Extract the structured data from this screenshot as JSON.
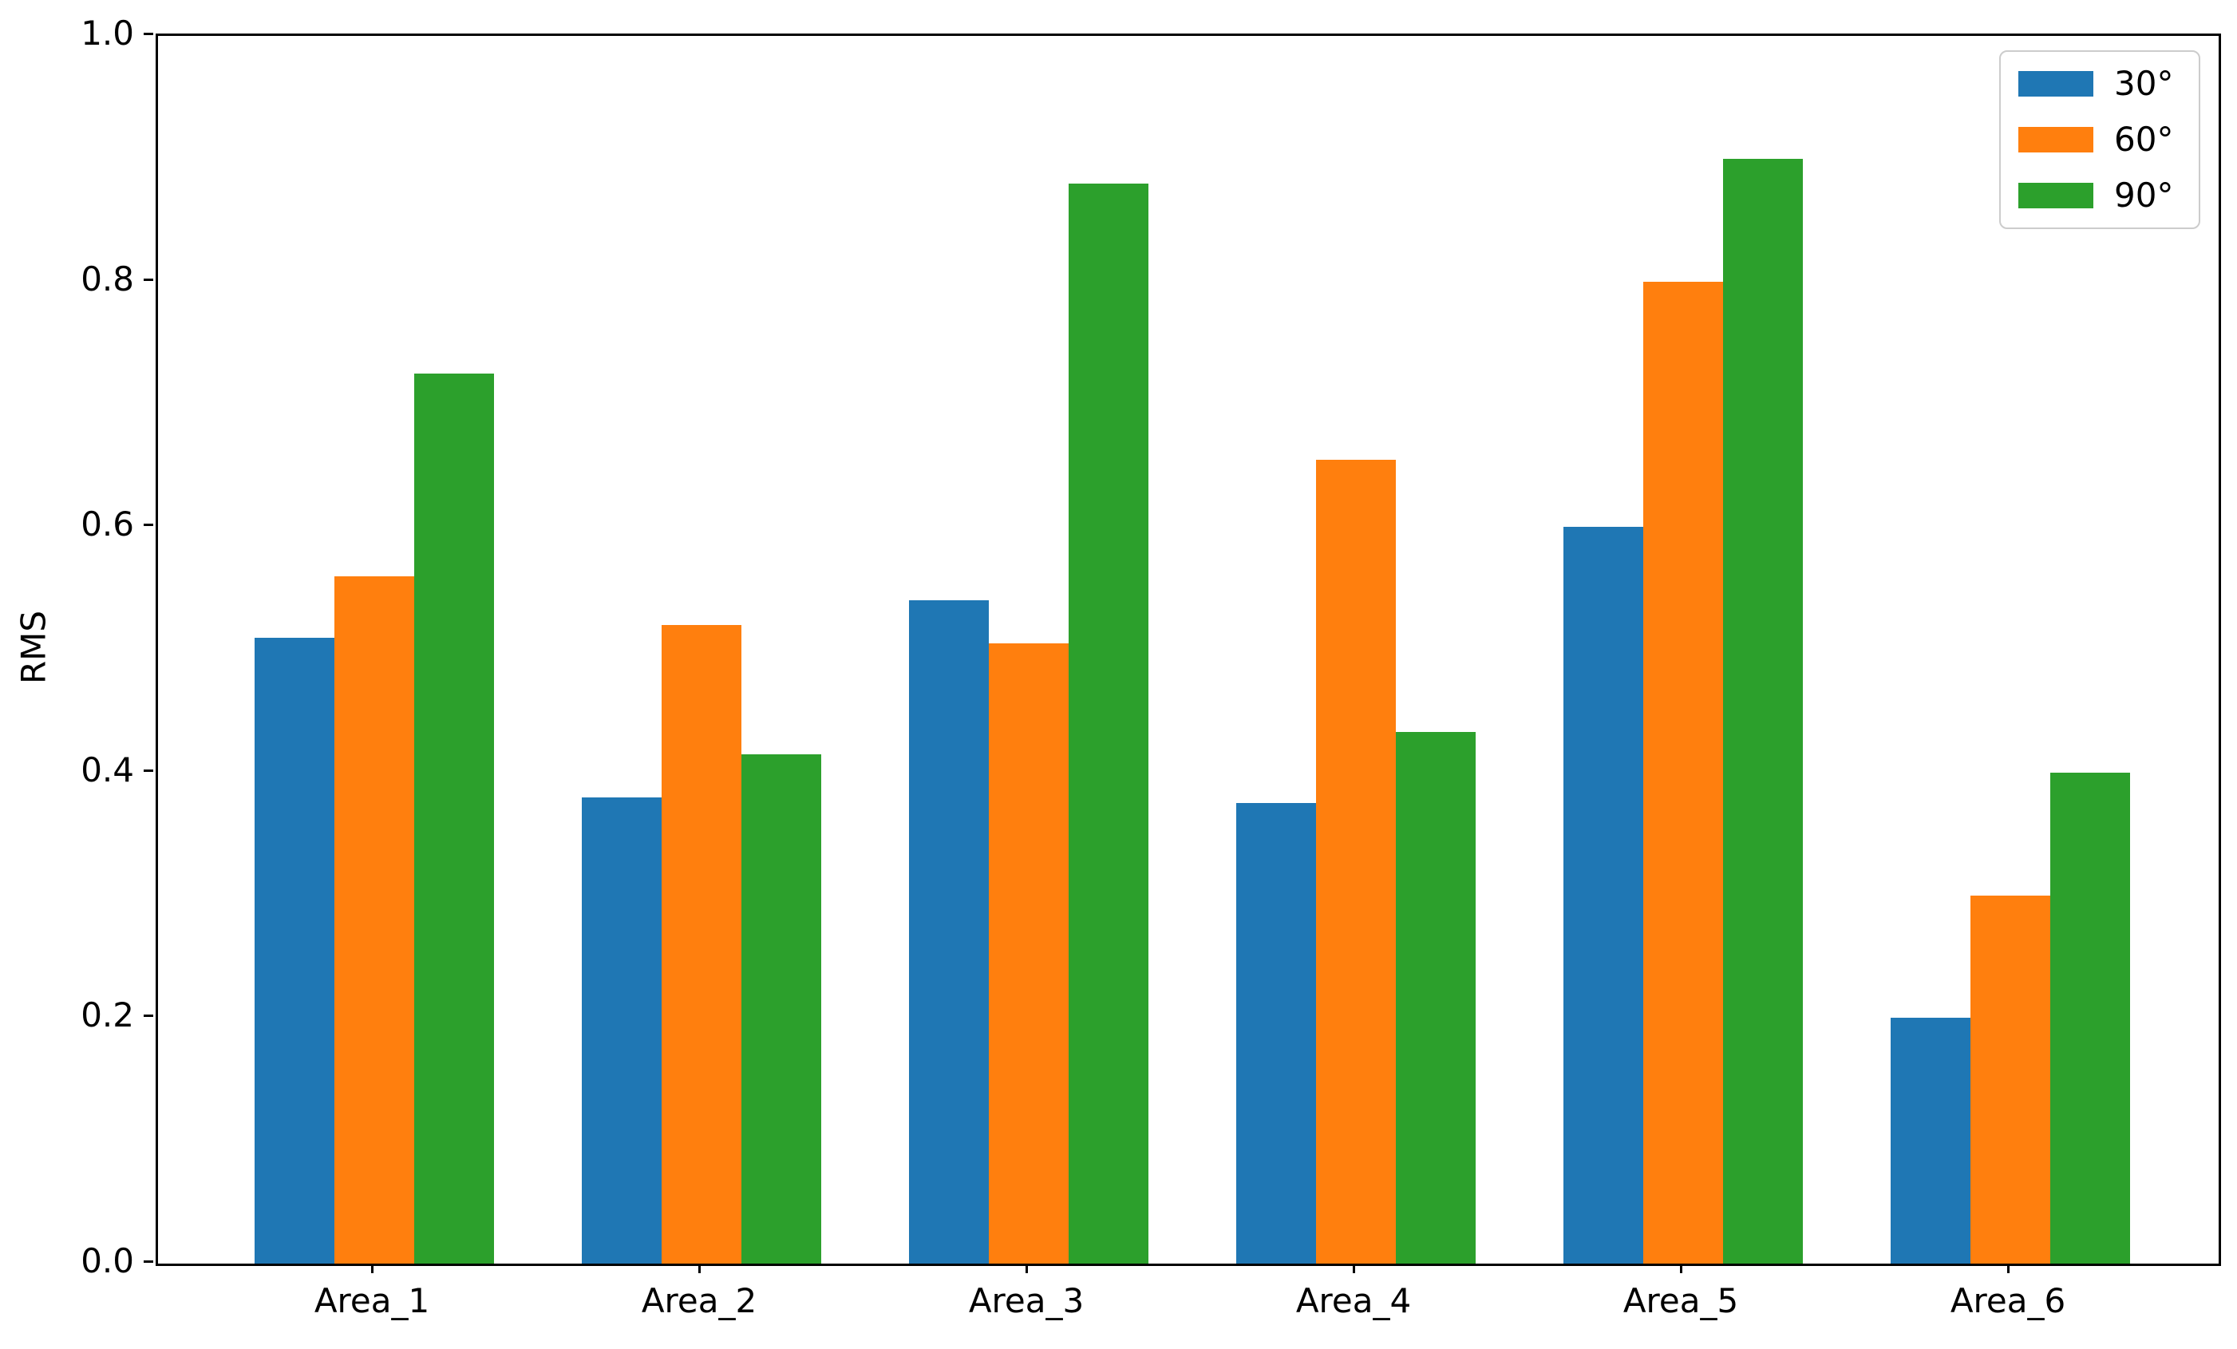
{
  "chart_data": {
    "type": "bar",
    "title": "",
    "xlabel": "",
    "ylabel": "RMS",
    "categories": [
      "Area_1",
      "Area_2",
      "Area_3",
      "Area_4",
      "Area_5",
      "Area_6"
    ],
    "series": [
      {
        "name": "30°",
        "color": "#1f77b4",
        "values": [
          0.51,
          0.38,
          0.54,
          0.375,
          0.6,
          0.2
        ]
      },
      {
        "name": "60°",
        "color": "#ff7f0e",
        "values": [
          0.56,
          0.52,
          0.505,
          0.655,
          0.8,
          0.3
        ]
      },
      {
        "name": "90°",
        "color": "#2ca02c",
        "values": [
          0.725,
          0.415,
          0.88,
          0.433,
          0.9,
          0.4
        ]
      }
    ],
    "ylim": [
      0.0,
      1.0
    ],
    "yticks": [
      "0.0",
      "0.2",
      "0.4",
      "0.6",
      "0.8",
      "1.0"
    ],
    "grid": false,
    "legend_position": "upper right",
    "colors": {
      "background": "#ffffff",
      "axis": "#000000",
      "legend_border": "#cccccc"
    }
  }
}
